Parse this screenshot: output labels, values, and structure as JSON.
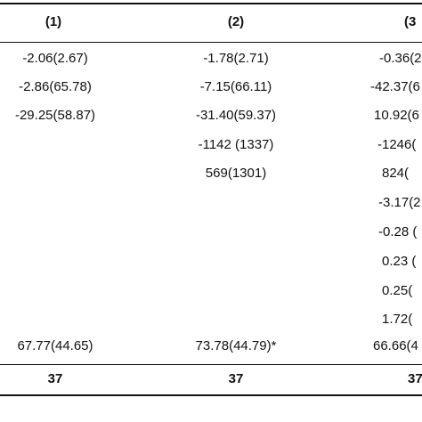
{
  "table": {
    "headers": [
      "(1)",
      "(2)",
      "(3"
    ],
    "rows": [
      [
        "-2.06(2.67)",
        "-1.78(2.71)",
        "-0.36(2"
      ],
      [
        "-2.86(65.78)",
        "-7.15(66.11)",
        "-42.37(6"
      ],
      [
        "-29.25(58.87)",
        "-31.40(59.37)",
        "10.92(6"
      ],
      [
        "",
        "-1142 (1337)",
        "-1246("
      ],
      [
        "",
        "569(1301)",
        "824("
      ],
      [
        "",
        "",
        "-3.17(2"
      ],
      [
        "",
        "",
        "-0.28 ("
      ],
      [
        "",
        "",
        "0.23 ("
      ],
      [
        "",
        "",
        "0.25("
      ],
      [
        "",
        "",
        "1.72("
      ],
      [
        "67.77(44.65)",
        "73.78(44.79)*",
        "66.66(4"
      ]
    ],
    "footer": [
      "37",
      "37",
      "37"
    ]
  }
}
